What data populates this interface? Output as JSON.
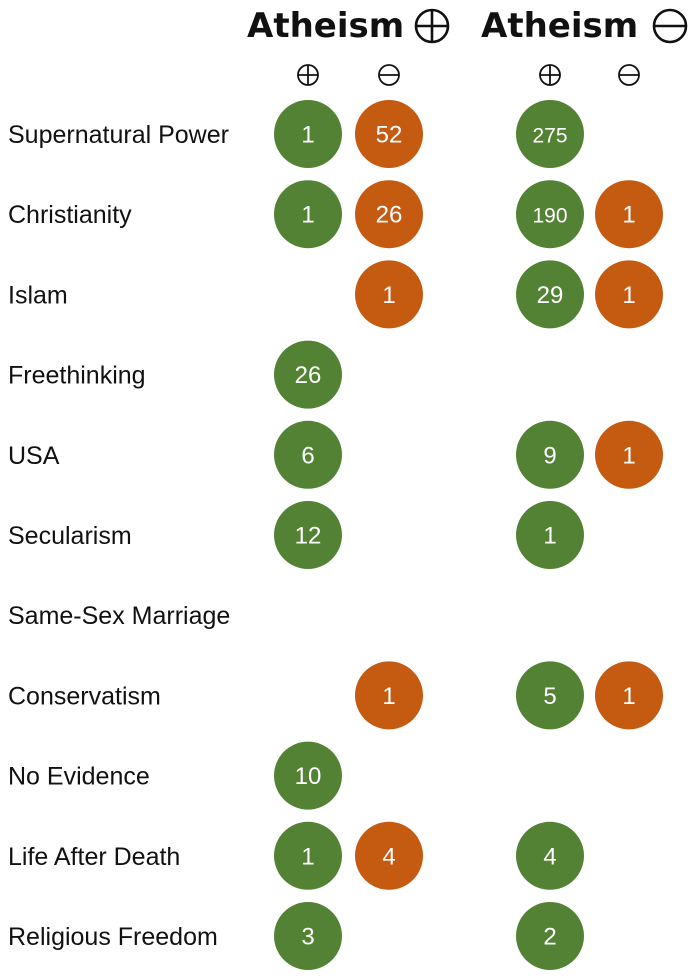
{
  "chart_data": {
    "type": "table",
    "groups": [
      {
        "title": "Atheism",
        "stance": "favor",
        "columns": [
          "favor",
          "against"
        ]
      },
      {
        "title": "Atheism",
        "stance": "against",
        "columns": [
          "favor",
          "against"
        ]
      }
    ],
    "rows": [
      {
        "label": "Supernatural Power",
        "values": [
          1,
          52,
          275,
          null
        ]
      },
      {
        "label": "Christianity",
        "values": [
          1,
          26,
          190,
          1
        ]
      },
      {
        "label": "Islam",
        "values": [
          null,
          1,
          29,
          1
        ]
      },
      {
        "label": "Freethinking",
        "values": [
          26,
          null,
          null,
          null
        ]
      },
      {
        "label": "USA",
        "values": [
          6,
          null,
          9,
          1
        ]
      },
      {
        "label": "Secularism",
        "values": [
          12,
          null,
          1,
          null
        ]
      },
      {
        "label": "Same-Sex Marriage",
        "values": [
          null,
          null,
          null,
          null
        ]
      },
      {
        "label": "Conservatism",
        "values": [
          null,
          1,
          5,
          1
        ]
      },
      {
        "label": "No Evidence",
        "values": [
          10,
          null,
          null,
          null
        ]
      },
      {
        "label": "Life After Death",
        "values": [
          1,
          4,
          4,
          null
        ]
      },
      {
        "label": "Religious Freedom",
        "values": [
          3,
          null,
          2,
          null
        ]
      }
    ],
    "colors": {
      "favor": "#548235",
      "against": "#C55A11"
    }
  }
}
